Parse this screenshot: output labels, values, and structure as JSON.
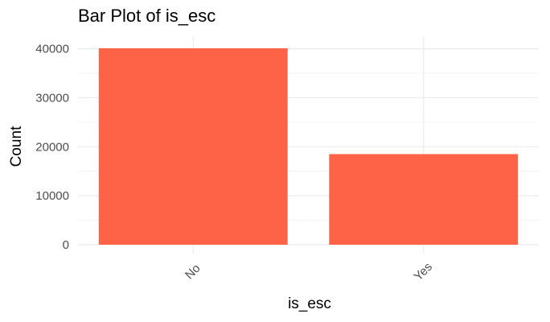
{
  "colors": {
    "bar_fill": "#ff6347",
    "grid_major": "#ebebeb",
    "grid_minor": "#f3f3f3",
    "tick_text": "#4d4d4d"
  },
  "chart_data": {
    "type": "bar",
    "title": "Bar Plot of is_esc",
    "xlabel": "is_esc",
    "ylabel": "Count",
    "categories": [
      "No",
      "Yes"
    ],
    "values": [
      40100,
      18500
    ],
    "ylim": [
      0,
      40100
    ],
    "yticks": [
      0,
      10000,
      20000,
      30000,
      40000
    ],
    "ytick_labels": [
      "0",
      "10000",
      "20000",
      "30000",
      "40000"
    ],
    "grid": true,
    "x_tick_rotation": "45 degrees",
    "legend": "none"
  }
}
